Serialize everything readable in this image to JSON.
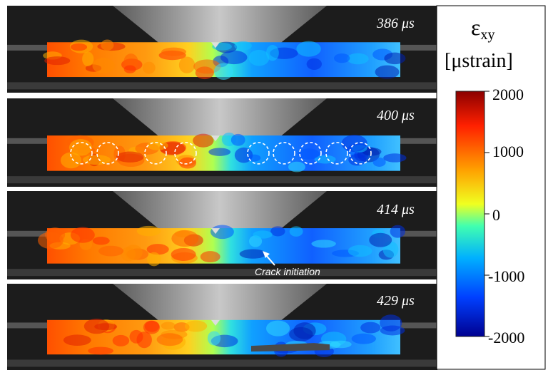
{
  "frames": [
    {
      "time": "386 μs"
    },
    {
      "time": "400 μs"
    },
    {
      "time": "414 μs",
      "annotation": "Crack initiation"
    },
    {
      "time": "429 μs"
    }
  ],
  "colorbar": {
    "symbol": "ε",
    "subscript": "xy",
    "unit": "[μstrain]",
    "ticks": [
      "2000",
      "1000",
      "0",
      "-1000",
      "-2000"
    ],
    "colors": [
      "#8b0000",
      "#ff2000",
      "#ffa000",
      "#f0ff20",
      "#40ffb0",
      "#00b0ff",
      "#0040ff",
      "#000090"
    ]
  }
}
